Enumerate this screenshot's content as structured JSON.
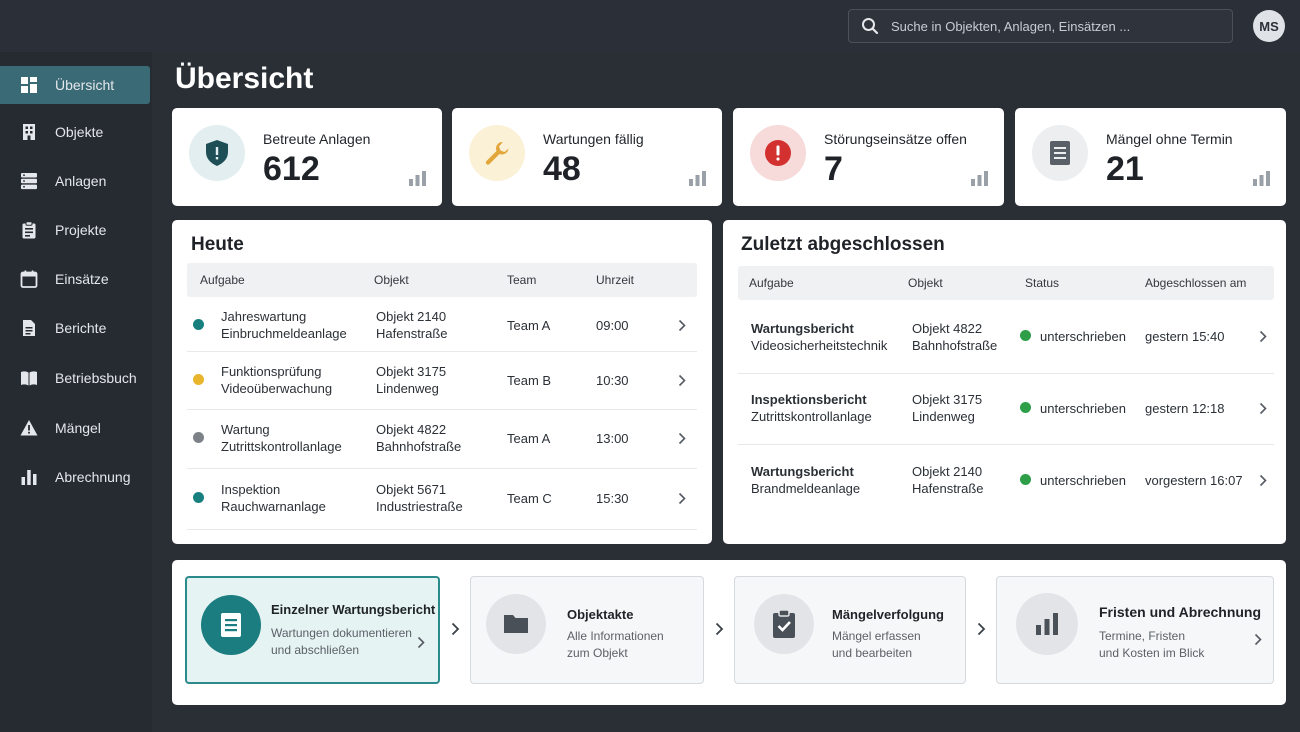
{
  "header": {
    "search_placeholder": "Suche in Objekten, Anlagen, Einsätzen ...",
    "avatar_initials": "MS"
  },
  "sidebar": {
    "items": [
      {
        "label": "Übersicht",
        "icon": "grid-icon",
        "active": true
      },
      {
        "label": "Objekte",
        "icon": "building-icon"
      },
      {
        "label": "Anlagen",
        "icon": "server-icon"
      },
      {
        "label": "Projekte",
        "icon": "clipboard-icon"
      },
      {
        "label": "Einsätze",
        "icon": "calendar-icon"
      },
      {
        "label": "Berichte",
        "icon": "document-icon"
      },
      {
        "label": "Betriebsbuch",
        "icon": "book-icon"
      },
      {
        "label": "Mängel",
        "icon": "warning-icon"
      },
      {
        "label": "Abrechnung",
        "icon": "bar-chart-icon"
      }
    ]
  },
  "page": {
    "title": "Übersicht"
  },
  "kpis": [
    {
      "label": "Betreute Anlagen",
      "value": "612",
      "icon": "shield-icon",
      "color": "#1e6b73"
    },
    {
      "label": "Wartungen fällig",
      "value": "48",
      "icon": "wrench-icon",
      "color": "#e3a63a"
    },
    {
      "label": "Störungseinsätze offen",
      "value": "7",
      "icon": "alert-icon",
      "color": "#d3312f"
    },
    {
      "label": "Mängel ohne Termin",
      "value": "21",
      "icon": "document-icon",
      "color": "#5a6068"
    }
  ],
  "today": {
    "title": "Heute",
    "columns": [
      "Aufgabe",
      "Objekt",
      "Team",
      "Uhrzeit"
    ],
    "rows": [
      {
        "task1": "Jahreswartung",
        "task2": "Einbruchmeldeanlage",
        "obj1": "Objekt 2140",
        "obj2": "Hafenstraße",
        "team": "Team A",
        "time": "09:00",
        "dot": "#17807f"
      },
      {
        "task1": "Funktionsprüfung",
        "task2": "Videoüberwachung",
        "obj1": "Objekt 3175",
        "obj2": "Lindenweg",
        "team": "Team B",
        "time": "10:30",
        "dot": "#e8b52c"
      },
      {
        "task1": "Wartung",
        "task2": "Zutrittskontrollanlage",
        "obj1": "Objekt 4822",
        "obj2": "Bahnhofstraße",
        "team": "Team A",
        "time": "13:00",
        "dot": "#7d8289"
      },
      {
        "task1": "Inspektion",
        "task2": "Rauchwarnanlage",
        "obj1": "Objekt 5671",
        "obj2": "Industriestraße",
        "team": "Team C",
        "time": "15:30",
        "dot": "#17807f"
      }
    ]
  },
  "recent": {
    "title": "Zuletzt abgeschlossen",
    "columns": [
      "Aufgabe",
      "Objekt",
      "Status",
      "Abgeschlossen am"
    ],
    "rows": [
      {
        "task1": "Wartungsbericht",
        "task2": "Videosicherheitstechnik",
        "obj1": "Objekt 4822",
        "obj2": "Bahnhofstraße",
        "status": "unterschrieben",
        "done": "gestern 15:40"
      },
      {
        "task1": "Inspektionsbericht",
        "task2": "Zutrittskontrollanlage",
        "obj1": "Objekt 3175",
        "obj2": "Lindenweg",
        "status": "unterschrieben",
        "done": "gestern 12:18"
      },
      {
        "task1": "Wartungsbericht",
        "task2": "Brandmeldeanlage",
        "obj1": "Objekt 2140",
        "obj2": "Hafenstraße",
        "status": "unterschrieben",
        "done": "vorgestern 16:07"
      }
    ],
    "status_color": "#2e9e48"
  },
  "workflow": [
    {
      "title": "Einzelner Wartungsbericht",
      "desc1": "Wartungen dokumentieren",
      "desc2": "und abschließen",
      "icon": "document-icon",
      "active": true
    },
    {
      "title": "Objektakte",
      "desc1": "Alle Informationen",
      "desc2": "zum Objekt",
      "icon": "folder-icon"
    },
    {
      "title": "Mängelverfolgung",
      "desc1": "Mängel erfassen",
      "desc2": "und bearbeiten",
      "icon": "clipboard-check-icon"
    },
    {
      "title": "Fristen und Abrechnung",
      "desc1": "Termine, Fristen",
      "desc2": "und Kosten im Blick",
      "icon": "bar-chart-icon"
    }
  ]
}
